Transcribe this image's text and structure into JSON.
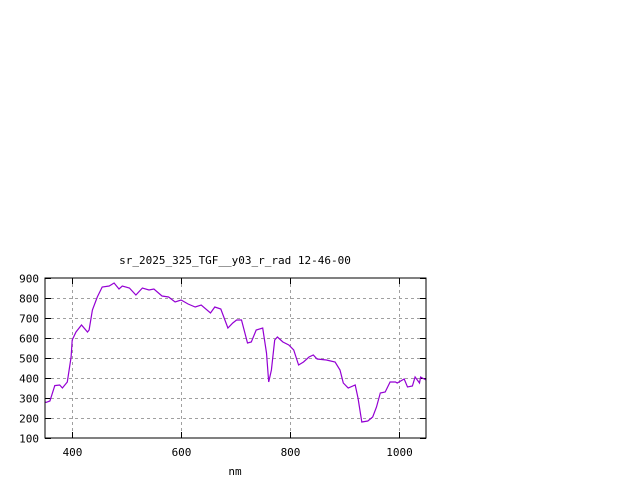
{
  "chart_data": {
    "type": "line",
    "title": "sr_2025_325_TGF__y03_r_rad 12-46-00",
    "xlabel": "nm",
    "ylabel": "",
    "xlim": [
      350,
      1050
    ],
    "ylim": [
      100,
      900
    ],
    "xticks": [
      400,
      600,
      800,
      1000
    ],
    "yticks": [
      100,
      200,
      300,
      400,
      500,
      600,
      700,
      800,
      900
    ],
    "grid": true,
    "line_color": "#9400d3",
    "series": [
      {
        "x": [
          350,
          352,
          359,
          368,
          377,
          382,
          391,
          398,
          400,
          407,
          417,
          428,
          431,
          437,
          446,
          455,
          468,
          477,
          486,
          492,
          505,
          517,
          529,
          541,
          550,
          565,
          577,
          589,
          600,
          613,
          626,
          637,
          654,
          662,
          673,
          686,
          695,
          702,
          711,
          722,
          729,
          738,
          750,
          757,
          761,
          766,
          772,
          777,
          787,
          798,
          807,
          816,
          825,
          835,
          843,
          850,
          867,
          883,
          892,
          898,
          907,
          920,
          925,
          932,
          943,
          952,
          959,
          966,
          975,
          984,
          994,
          997,
          1010,
          1016,
          1025,
          1030,
          1038,
          1040,
          1050
        ],
        "y": [
          280,
          278,
          285,
          362,
          365,
          350,
          380,
          505,
          590,
          630,
          665,
          630,
          640,
          740,
          805,
          855,
          860,
          875,
          845,
          860,
          850,
          815,
          850,
          840,
          845,
          810,
          805,
          780,
          790,
          770,
          755,
          765,
          725,
          755,
          745,
          650,
          675,
          690,
          690,
          575,
          580,
          640,
          650,
          525,
          380,
          440,
          590,
          605,
          580,
          565,
          540,
          465,
          480,
          505,
          515,
          495,
          490,
          480,
          440,
          375,
          350,
          365,
          300,
          180,
          185,
          205,
          255,
          325,
          330,
          380,
          380,
          375,
          395,
          355,
          360,
          405,
          375,
          405,
          390
        ]
      }
    ]
  }
}
